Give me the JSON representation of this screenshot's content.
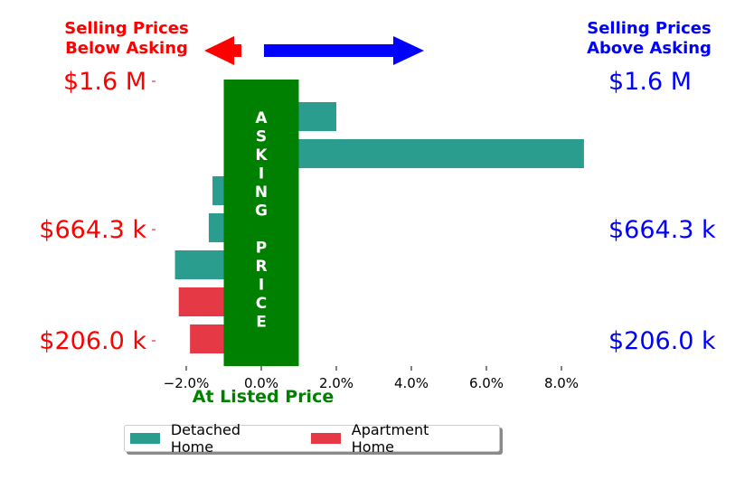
{
  "header": {
    "left_title": "Selling Prices\nBelow Asking",
    "right_title": "Selling Prices\nAbove Asking"
  },
  "colors": {
    "below": "#ff0000",
    "above": "#0000ff",
    "asking": "#008000",
    "detached": "#2a9d8f",
    "apartment": "#e63946"
  },
  "chart_data": {
    "type": "bar",
    "orientation": "horizontal",
    "xlabel": "At Listed Price",
    "xlim": [
      -2.5,
      8.5
    ],
    "xticks": [
      "−2.0%",
      "0.0%",
      "2.0%",
      "4.0%",
      "6.0%",
      "8.0%"
    ],
    "xtick_values": [
      -2,
      0,
      2,
      4,
      6,
      8
    ],
    "ytick_labels_left": [
      "$1.6 M",
      "$664.3 k",
      "$206.0 k"
    ],
    "ytick_labels_right": [
      "$1.6 M",
      "$664.3 k",
      "$206.0 k"
    ],
    "band_text": "ASKING PRICE",
    "band_range": [
      -1.0,
      1.0
    ],
    "bars": [
      {
        "series": "Detached Home",
        "value": 2.0
      },
      {
        "series": "Detached Home",
        "value": 8.6
      },
      {
        "series": "Detached Home",
        "value": -1.3
      },
      {
        "series": "Detached Home",
        "value": -1.4
      },
      {
        "series": "Detached Home",
        "value": -2.3
      },
      {
        "series": "Apartment Home",
        "value": -2.2
      },
      {
        "series": "Apartment Home",
        "value": -1.9
      }
    ],
    "legend": [
      "Detached Home",
      "Apartment Home"
    ],
    "legend_position": "bottom-center"
  }
}
